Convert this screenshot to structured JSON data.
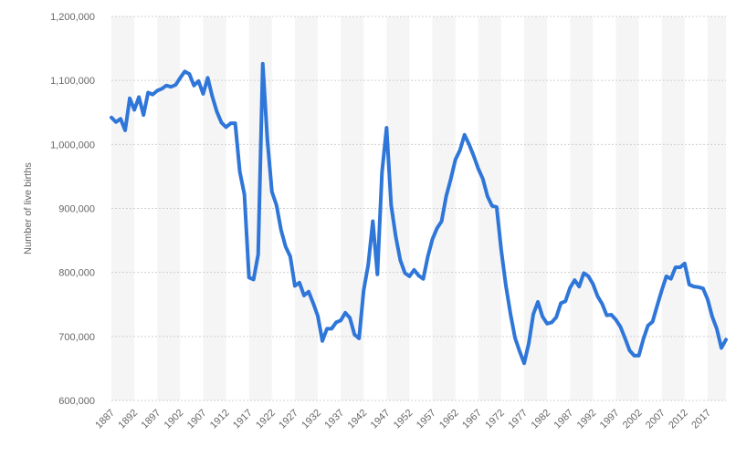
{
  "chart_data": {
    "type": "line",
    "title": "",
    "xlabel": "",
    "ylabel": "Number of live births",
    "ylim": [
      600000,
      1200000
    ],
    "xlim": [
      1887,
      2021
    ],
    "y_ticks": [
      600000,
      700000,
      800000,
      900000,
      1000000,
      1100000,
      1200000
    ],
    "y_tick_labels": [
      "600,000",
      "700,000",
      "800,000",
      "900,000",
      "1,000,000",
      "1,100,000",
      "1,200,000"
    ],
    "x_ticks": [
      1887,
      1892,
      1897,
      1902,
      1907,
      1912,
      1917,
      1922,
      1927,
      1932,
      1937,
      1942,
      1947,
      1952,
      1957,
      1962,
      1967,
      1972,
      1977,
      1982,
      1987,
      1992,
      1997,
      2002,
      2007,
      2012,
      2017
    ],
    "x_tick_labels": [
      "1887",
      "1892",
      "1897",
      "1902",
      "1907",
      "1912",
      "1917",
      "1922",
      "1927",
      "1932",
      "1937",
      "1942",
      "1947",
      "1952",
      "1957",
      "1962",
      "1967",
      "1972",
      "1977",
      "1982",
      "1987",
      "1992",
      "1997",
      "2002",
      "2007",
      "2012",
      "2017"
    ],
    "grid": "horizontal dashed",
    "alternating_year_bands": true,
    "series": [
      {
        "color": "#2f76d9",
        "x": [
          1887,
          1888,
          1889,
          1890,
          1891,
          1892,
          1893,
          1894,
          1895,
          1896,
          1897,
          1898,
          1899,
          1900,
          1901,
          1902,
          1903,
          1904,
          1905,
          1906,
          1907,
          1908,
          1909,
          1910,
          1911,
          1912,
          1913,
          1914,
          1915,
          1916,
          1917,
          1918,
          1919,
          1920,
          1921,
          1922,
          1923,
          1924,
          1925,
          1926,
          1927,
          1928,
          1929,
          1930,
          1931,
          1932,
          1933,
          1934,
          1935,
          1936,
          1937,
          1938,
          1939,
          1940,
          1941,
          1942,
          1943,
          1944,
          1945,
          1946,
          1947,
          1948,
          1949,
          1950,
          1951,
          1952,
          1953,
          1954,
          1955,
          1956,
          1957,
          1958,
          1959,
          1960,
          1961,
          1962,
          1963,
          1964,
          1965,
          1966,
          1967,
          1968,
          1969,
          1970,
          1971,
          1972,
          1973,
          1974,
          1975,
          1976,
          1977,
          1978,
          1979,
          1980,
          1981,
          1982,
          1983,
          1984,
          1985,
          1986,
          1987,
          1988,
          1989,
          1990,
          1991,
          1992,
          1993,
          1994,
          1995,
          1996,
          1997,
          1998,
          1999,
          2000,
          2001,
          2002,
          2003,
          2004,
          2005,
          2006,
          2007,
          2008,
          2009,
          2010,
          2011,
          2012,
          2013,
          2014,
          2015,
          2016,
          2017,
          2018,
          2019,
          2020,
          2021
        ],
        "values": [
          1042000,
          1035000,
          1040000,
          1022000,
          1072000,
          1054000,
          1074000,
          1046000,
          1081000,
          1078000,
          1084000,
          1087000,
          1092000,
          1090000,
          1093000,
          1104000,
          1114000,
          1110000,
          1092000,
          1099000,
          1079000,
          1104000,
          1075000,
          1051000,
          1034000,
          1027000,
          1033000,
          1033000,
          957000,
          922000,
          792000,
          789000,
          828000,
          1126000,
          1008000,
          926000,
          905000,
          866000,
          840000,
          825000,
          779000,
          784000,
          764000,
          770000,
          752000,
          732000,
          693000,
          712000,
          712000,
          722000,
          725000,
          737000,
          729000,
          703000,
          697000,
          772000,
          812000,
          880000,
          797000,
          956000,
          1026000,
          905000,
          856000,
          819000,
          799000,
          794000,
          804000,
          795000,
          790000,
          825000,
          852000,
          869000,
          880000,
          919000,
          946000,
          976000,
          991000,
          1015000,
          1000000,
          982000,
          962000,
          946000,
          919000,
          904000,
          902000,
          835000,
          780000,
          736000,
          698000,
          677000,
          658000,
          689000,
          735000,
          754000,
          731000,
          720000,
          722000,
          730000,
          752000,
          755000,
          776000,
          788000,
          778000,
          799000,
          794000,
          782000,
          763000,
          751000,
          733000,
          734000,
          726000,
          715000,
          697000,
          678000,
          670000,
          670000,
          696000,
          717000,
          723000,
          748000,
          772000,
          794000,
          790000,
          808000,
          808000,
          814000,
          781000,
          778000,
          777000,
          775000,
          758000,
          731000,
          712000,
          682000,
          695000
        ]
      }
    ]
  }
}
